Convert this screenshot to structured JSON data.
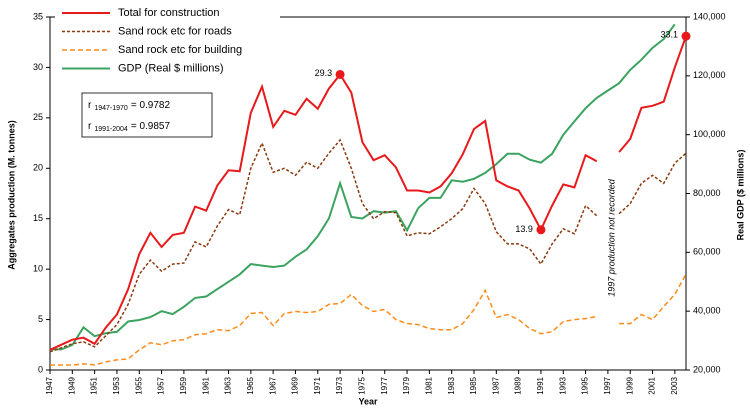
{
  "chart_data": {
    "type": "line",
    "y_label": "Aggregates production (M. tonnes)",
    "y2_label": "Real GDP ($ millions)",
    "x_label": "Year",
    "x": [
      1947,
      1948,
      1949,
      1950,
      1951,
      1952,
      1953,
      1954,
      1955,
      1956,
      1957,
      1958,
      1959,
      1960,
      1961,
      1962,
      1963,
      1964,
      1965,
      1966,
      1967,
      1968,
      1969,
      1970,
      1971,
      1972,
      1973,
      1974,
      1975,
      1976,
      1977,
      1978,
      1979,
      1980,
      1981,
      1982,
      1983,
      1984,
      1985,
      1986,
      1987,
      1988,
      1989,
      1990,
      1991,
      1992,
      1993,
      1994,
      1995,
      1996,
      1997,
      1998,
      1999,
      2000,
      2001,
      2002,
      2003,
      2004
    ],
    "series": [
      {
        "name": "Total for construction",
        "color": "#e8191b",
        "dash": "",
        "width": 2,
        "values": [
          2.0,
          2.5,
          3.0,
          3.2,
          2.6,
          4.2,
          5.5,
          8.0,
          11.5,
          13.6,
          12.2,
          13.4,
          13.6,
          16.2,
          15.8,
          18.3,
          19.8,
          19.7,
          25.5,
          28.1,
          24.1,
          25.7,
          25.3,
          26.9,
          25.9,
          27.9,
          29.3,
          27.5,
          22.6,
          20.8,
          21.3,
          20.1,
          17.8,
          17.8,
          17.6,
          18.2,
          19.5,
          21.4,
          23.9,
          24.7,
          18.8,
          18.2,
          17.8,
          16.0,
          13.9,
          16.3,
          18.4,
          18.1,
          21.3,
          20.7,
          null,
          21.6,
          22.9,
          26.0,
          26.2,
          26.6,
          30.0,
          33.1
        ]
      },
      {
        "name": "Sand rock etc for roads",
        "color": "#8b3a0f",
        "dash": "3,2",
        "width": 1.5,
        "values": [
          1.8,
          2.2,
          2.6,
          2.8,
          2.3,
          3.4,
          4.5,
          6.5,
          9.5,
          10.9,
          9.8,
          10.5,
          10.6,
          12.7,
          12.2,
          14.3,
          15.9,
          15.4,
          20.0,
          22.5,
          19.6,
          20.0,
          19.3,
          20.6,
          20.0,
          21.5,
          22.8,
          20.0,
          16.5,
          15.0,
          15.7,
          15.6,
          13.3,
          13.6,
          13.5,
          14.2,
          15.0,
          16.0,
          18.0,
          16.5,
          13.7,
          12.5,
          12.5,
          12.0,
          10.5,
          12.5,
          14.0,
          13.5,
          16.3,
          15.3,
          null,
          15.5,
          16.5,
          18.5,
          19.3,
          18.5,
          20.5,
          21.5
        ]
      },
      {
        "name": "Sand rock etc for building",
        "color": "#ff8c1a",
        "dash": "5,3",
        "width": 1.5,
        "values": [
          0.5,
          0.5,
          0.5,
          0.6,
          0.5,
          0.8,
          1.0,
          1.1,
          2.0,
          2.7,
          2.5,
          2.9,
          3.0,
          3.5,
          3.6,
          4.0,
          3.9,
          4.4,
          5.6,
          5.7,
          4.4,
          5.6,
          5.8,
          5.7,
          5.8,
          6.5,
          6.6,
          7.5,
          6.4,
          5.8,
          6.0,
          5.0,
          4.6,
          4.5,
          4.1,
          4.0,
          4.0,
          4.6,
          6.0,
          7.9,
          5.2,
          5.5,
          5.0,
          4.1,
          3.6,
          3.8,
          4.8,
          5.0,
          5.1,
          5.3,
          null,
          4.6,
          4.6,
          5.5,
          5.0,
          6.3,
          7.5,
          9.5
        ]
      },
      {
        "name": "GDP (Real $ millions)",
        "color": "#3ba35f",
        "dash": "",
        "width": 2,
        "axis": "y2",
        "values": [
          27000,
          27000,
          28500,
          34500,
          31500,
          32500,
          33000,
          36500,
          37000,
          38000,
          40000,
          39000,
          41500,
          44500,
          45000,
          47500,
          50000,
          52500,
          56000,
          55500,
          55000,
          55500,
          58500,
          61000,
          65500,
          71500,
          83500,
          72000,
          71500,
          74000,
          73500,
          74000,
          67500,
          75000,
          78500,
          78500,
          84500,
          84000,
          85000,
          87000,
          90000,
          93500,
          93500,
          91500,
          90500,
          93500,
          100000,
          104500,
          109000,
          112500,
          115000,
          117500,
          122000,
          125500,
          129500,
          132500,
          137500,
          null
        ]
      }
    ],
    "xlim": [
      1947,
      2004
    ],
    "xticks": [
      1947,
      1949,
      1951,
      1953,
      1955,
      1957,
      1959,
      1961,
      1963,
      1965,
      1967,
      1969,
      1971,
      1973,
      1975,
      1977,
      1979,
      1981,
      1983,
      1985,
      1987,
      1989,
      1991,
      1993,
      1995,
      1997,
      1999,
      2001,
      2003
    ],
    "ylim": [
      0,
      35
    ],
    "yticks": [
      0,
      5,
      10,
      15,
      20,
      25,
      30,
      35
    ],
    "y2lim": [
      20000,
      140000
    ],
    "y2ticks": [
      {
        "value": 20000,
        "label": "20,000"
      },
      {
        "value": 40000,
        "label": "40,000"
      },
      {
        "value": 60000,
        "label": "60,000"
      },
      {
        "value": 80000,
        "label": "80,000"
      },
      {
        "value": 100000,
        "label": "100,000"
      },
      {
        "value": 120000,
        "label": "120,000"
      },
      {
        "value": 140000,
        "label": "140,000"
      }
    ],
    "annotations": [
      {
        "x": 1973,
        "y": 29.3
      },
      {
        "x": 1991,
        "y": 13.9
      },
      {
        "x": 2004,
        "y": 33.1
      }
    ],
    "annotation_color": "#e8191b",
    "correlations": [
      {
        "symbol": "r",
        "period": "1947-1970",
        "text": "= 0.9782"
      },
      {
        "symbol": "r",
        "period": "1991-2004",
        "text": "= 0.9857"
      }
    ],
    "note": "1997 production not recorded"
  }
}
